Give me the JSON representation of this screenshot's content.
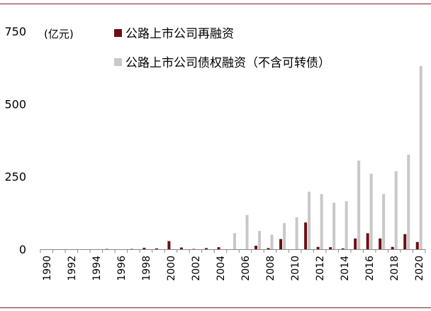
{
  "chart_data": {
    "type": "bar",
    "unit_label": "(亿元)",
    "x": [
      1990,
      1991,
      1992,
      1993,
      1994,
      1995,
      1996,
      1997,
      1998,
      1999,
      2000,
      2001,
      2002,
      2003,
      2004,
      2005,
      2006,
      2007,
      2008,
      2009,
      2010,
      2011,
      2012,
      2013,
      2014,
      2015,
      2016,
      2017,
      2018,
      2019,
      2020
    ],
    "x_tick_labels": [
      "1990",
      "1992",
      "1994",
      "1996",
      "1998",
      "2000",
      "2002",
      "2004",
      "2006",
      "2008",
      "2010",
      "2012",
      "2014",
      "2016",
      "2018",
      "2020"
    ],
    "y_tick_labels": [
      "0",
      "250",
      "500",
      "750"
    ],
    "ylim": [
      0,
      750
    ],
    "grid": false,
    "legend_position": "top",
    "series": [
      {
        "name": "公路上市公司再融资",
        "color": "#6b0f14",
        "values": [
          0,
          0,
          0,
          0,
          0,
          1,
          0,
          1,
          5,
          3,
          28,
          6,
          1,
          4,
          7,
          0,
          0,
          12,
          4,
          35,
          0,
          92,
          8,
          7,
          3,
          37,
          55,
          37,
          8,
          52,
          25
        ]
      },
      {
        "name": "公路上市公司债权融资（不含可转债）",
        "color": "#c8c8c8",
        "values": [
          0,
          0,
          0,
          0,
          0,
          0,
          0,
          0,
          0,
          0,
          0,
          0,
          0,
          0,
          0,
          55,
          118,
          63,
          50,
          90,
          110,
          198,
          190,
          160,
          165,
          305,
          260,
          190,
          268,
          325,
          630
        ]
      }
    ]
  }
}
